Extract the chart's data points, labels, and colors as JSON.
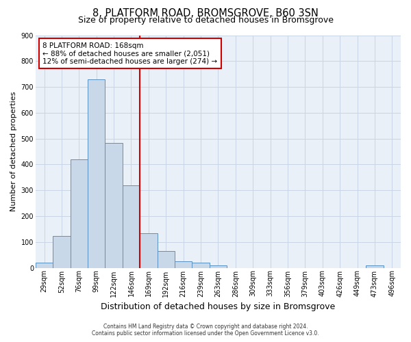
{
  "title": "8, PLATFORM ROAD, BROMSGROVE, B60 3SN",
  "subtitle": "Size of property relative to detached houses in Bromsgrove",
  "xlabel": "Distribution of detached houses by size in Bromsgrove",
  "ylabel": "Number of detached properties",
  "bar_values": [
    20,
    122,
    420,
    730,
    483,
    319,
    133,
    65,
    25,
    20,
    9,
    0,
    0,
    0,
    0,
    0,
    0,
    0,
    0,
    8,
    0
  ],
  "bin_labels": [
    "29sqm",
    "52sqm",
    "76sqm",
    "99sqm",
    "122sqm",
    "146sqm",
    "169sqm",
    "192sqm",
    "216sqm",
    "239sqm",
    "263sqm",
    "286sqm",
    "309sqm",
    "333sqm",
    "356sqm",
    "379sqm",
    "403sqm",
    "426sqm",
    "449sqm",
    "473sqm",
    "496sqm"
  ],
  "ylim": [
    0,
    900
  ],
  "yticks": [
    0,
    100,
    200,
    300,
    400,
    500,
    600,
    700,
    800,
    900
  ],
  "bar_color": "#c8d8e8",
  "bar_edge_color": "#5a90c3",
  "vline_x_idx": 6,
  "vline_color": "#cc0000",
  "annotation_text": "8 PLATFORM ROAD: 168sqm\n← 88% of detached houses are smaller (2,051)\n12% of semi-detached houses are larger (274) →",
  "annotation_box_color": "#ffffff",
  "annotation_border_color": "#cc0000",
  "footer_line1": "Contains HM Land Registry data © Crown copyright and database right 2024.",
  "footer_line2": "Contains public sector information licensed under the Open Government Licence v3.0.",
  "bg_color": "#ffffff",
  "plot_bg_color": "#eaf0f8",
  "grid_color": "#c8d4e4",
  "title_fontsize": 10.5,
  "subtitle_fontsize": 9,
  "ylabel_fontsize": 8,
  "xlabel_fontsize": 9,
  "tick_fontsize": 7,
  "annotation_fontsize": 7.5
}
